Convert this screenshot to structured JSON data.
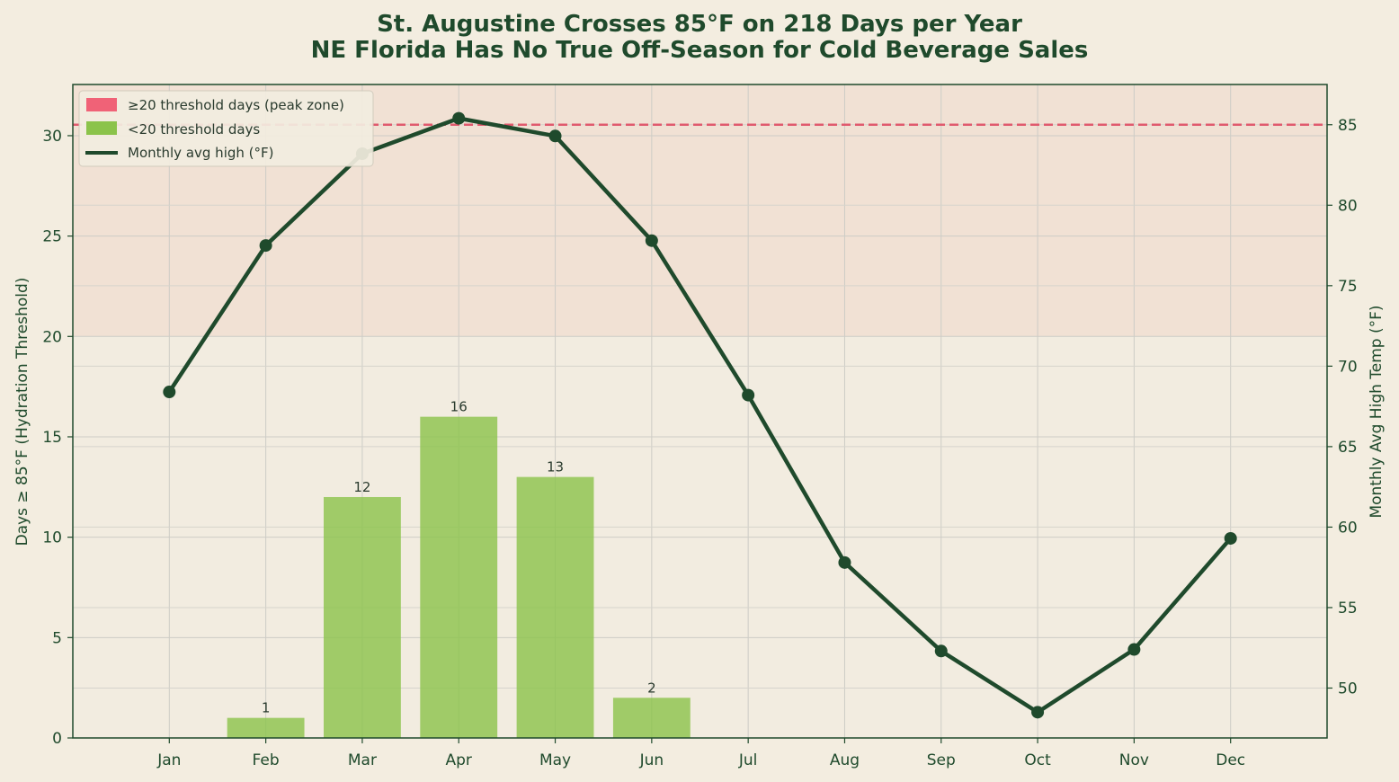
{
  "chart_data": {
    "type": "bar",
    "title": "St. Augustine Crosses 85°F on 218 Days per Year",
    "subtitle": "NE Florida Has No True Off-Season for Cold Beverage Sales",
    "categories": [
      "Jan",
      "Feb",
      "Mar",
      "Apr",
      "May",
      "Jun",
      "Jul",
      "Aug",
      "Sep",
      "Oct",
      "Nov",
      "Dec"
    ],
    "series": [
      {
        "name": "<20 threshold days",
        "kind": "bar",
        "axis": "left",
        "values": [
          0,
          1,
          12,
          16,
          13,
          2,
          0,
          0,
          0,
          0,
          0,
          0
        ],
        "color": "#8bc34a"
      },
      {
        "name": "Monthly avg high (°F)",
        "kind": "line",
        "axis": "right",
        "values": [
          68.4,
          77.5,
          83.2,
          85.4,
          84.3,
          77.8,
          68.2,
          57.8,
          52.3,
          48.5,
          52.4,
          59.3
        ],
        "color": "#1f4a2c"
      }
    ],
    "peak_zone": {
      "legend_label": "≥20 threshold days (peak zone)",
      "from": 20,
      "color": "#f06277"
    },
    "threshold_line": {
      "axis": "right",
      "value": 85,
      "color": "#e05a6e",
      "style": "dashed"
    },
    "ylabel": "Days ≥ 85°F (Hydration Threshold)",
    "ylabel_right": "Monthly Avg High Temp (°F)",
    "ylim": [
      0,
      32.55
    ],
    "ylim_right": [
      46.9,
      87.5
    ],
    "yticks": [
      0,
      5,
      10,
      15,
      20,
      25,
      30
    ],
    "yticks_right": [
      50,
      55,
      60,
      65,
      70,
      75,
      80,
      85
    ],
    "grid": true,
    "legend_position": "top-left"
  }
}
